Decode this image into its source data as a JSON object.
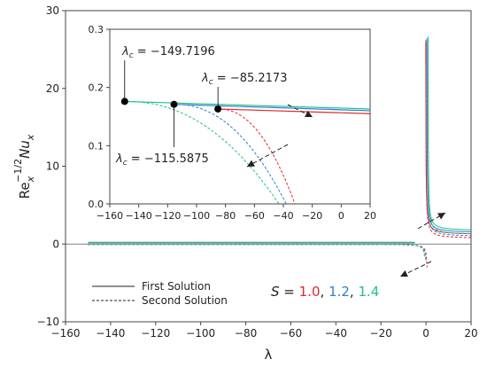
{
  "chart_data": {
    "type": "line",
    "xlabel": "λ",
    "ylabel": "Re_x^(-1/2) Nu_x",
    "xlim": [
      -160,
      20
    ],
    "ylim": [
      -10,
      30
    ],
    "xticks": [
      "−160",
      "−140",
      "−120",
      "−100",
      "−80",
      "−60",
      "−40",
      "−20",
      "0",
      "20"
    ],
    "yticks": [
      "−10",
      "0",
      "10",
      "20",
      "30"
    ],
    "series": [
      {
        "name": "1.0",
        "color": "#e0282e",
        "first_solution": {
          "lambda_c": -85.2173
        }
      },
      {
        "name": "1.2",
        "color": "#2f7fd0",
        "first_solution": {
          "lambda_c": -115.5875
        }
      },
      {
        "name": "1.4",
        "color": "#1fbf8f",
        "first_solution": {
          "lambda_c": -149.7196
        }
      }
    ],
    "legend": {
      "placement": "bottom-left",
      "entries": [
        {
          "label": "First Solution",
          "style": "solid"
        },
        {
          "label": "Second Solution",
          "style": "dashed"
        }
      ]
    },
    "s_legend": {
      "prefix": "S =",
      "separator": ","
    },
    "inset": {
      "xlim": [
        -160,
        20
      ],
      "ylim": [
        0.0,
        0.3
      ],
      "xticks": [
        "−160",
        "−140",
        "−120",
        "−100",
        "−80",
        "−60",
        "−40",
        "−20",
        "0",
        "20"
      ],
      "yticks": [
        "0.0",
        "0.1",
        "0.2",
        "0.3"
      ],
      "critical_points": [
        {
          "x": -149.7196,
          "y": 0.176,
          "label": "λ_c = −149.7196"
        },
        {
          "x": -115.5875,
          "y": 0.171,
          "label": "λ_c = −115.5875"
        },
        {
          "x": -85.2173,
          "y": 0.163,
          "label": "λ_c = −85.2173"
        }
      ]
    }
  }
}
